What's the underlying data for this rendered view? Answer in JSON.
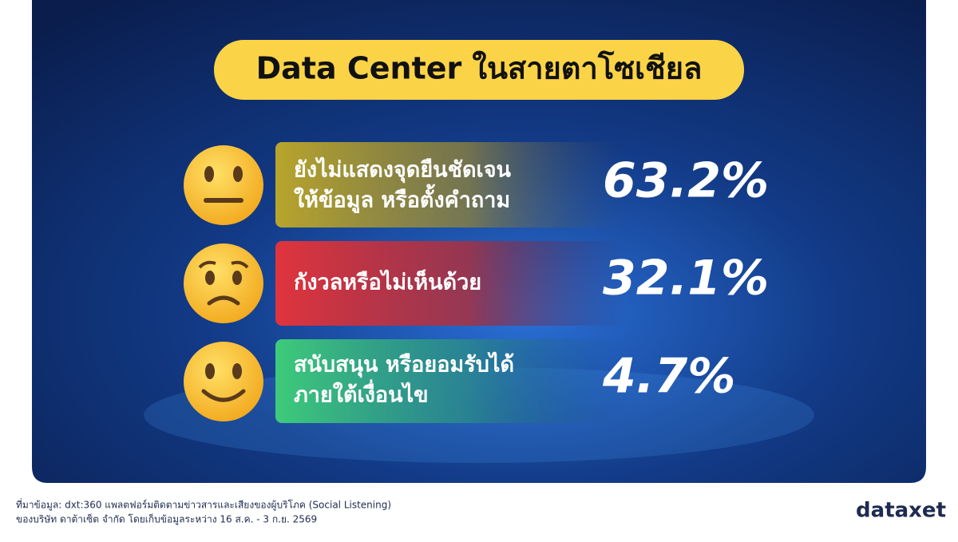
{
  "header": {
    "title": "Data Center ในสายตาโซเชียล"
  },
  "items": [
    {
      "label_lines": [
        "ยังไม่แสดงจุดยืนชัดเจน",
        "ให้ข้อมูล หรือตั้งคำถาม"
      ],
      "value": "63.2%"
    },
    {
      "label_lines": [
        "กังวลหรือไม่เห็นด้วย"
      ],
      "value": "32.1%"
    },
    {
      "label_lines": [
        "สนับสนุน หรือยอมรับได้",
        "ภายใต้เงื่อนไข"
      ],
      "value": "4.7%"
    }
  ],
  "footer": {
    "source_lines": [
      "ที่มาข้อมูล: dxt:360 แพลตฟอร์มติดตามข่าวสารและเสียงของผู้บริโภค (Social Listening)",
      "ของบริษัท ดาต้าเซ็ต จำกัด โดยเก็บข้อมูลระหว่าง 16 ส.ค. - 3 ก.ย. 2569"
    ],
    "logo": "dataxet"
  }
}
